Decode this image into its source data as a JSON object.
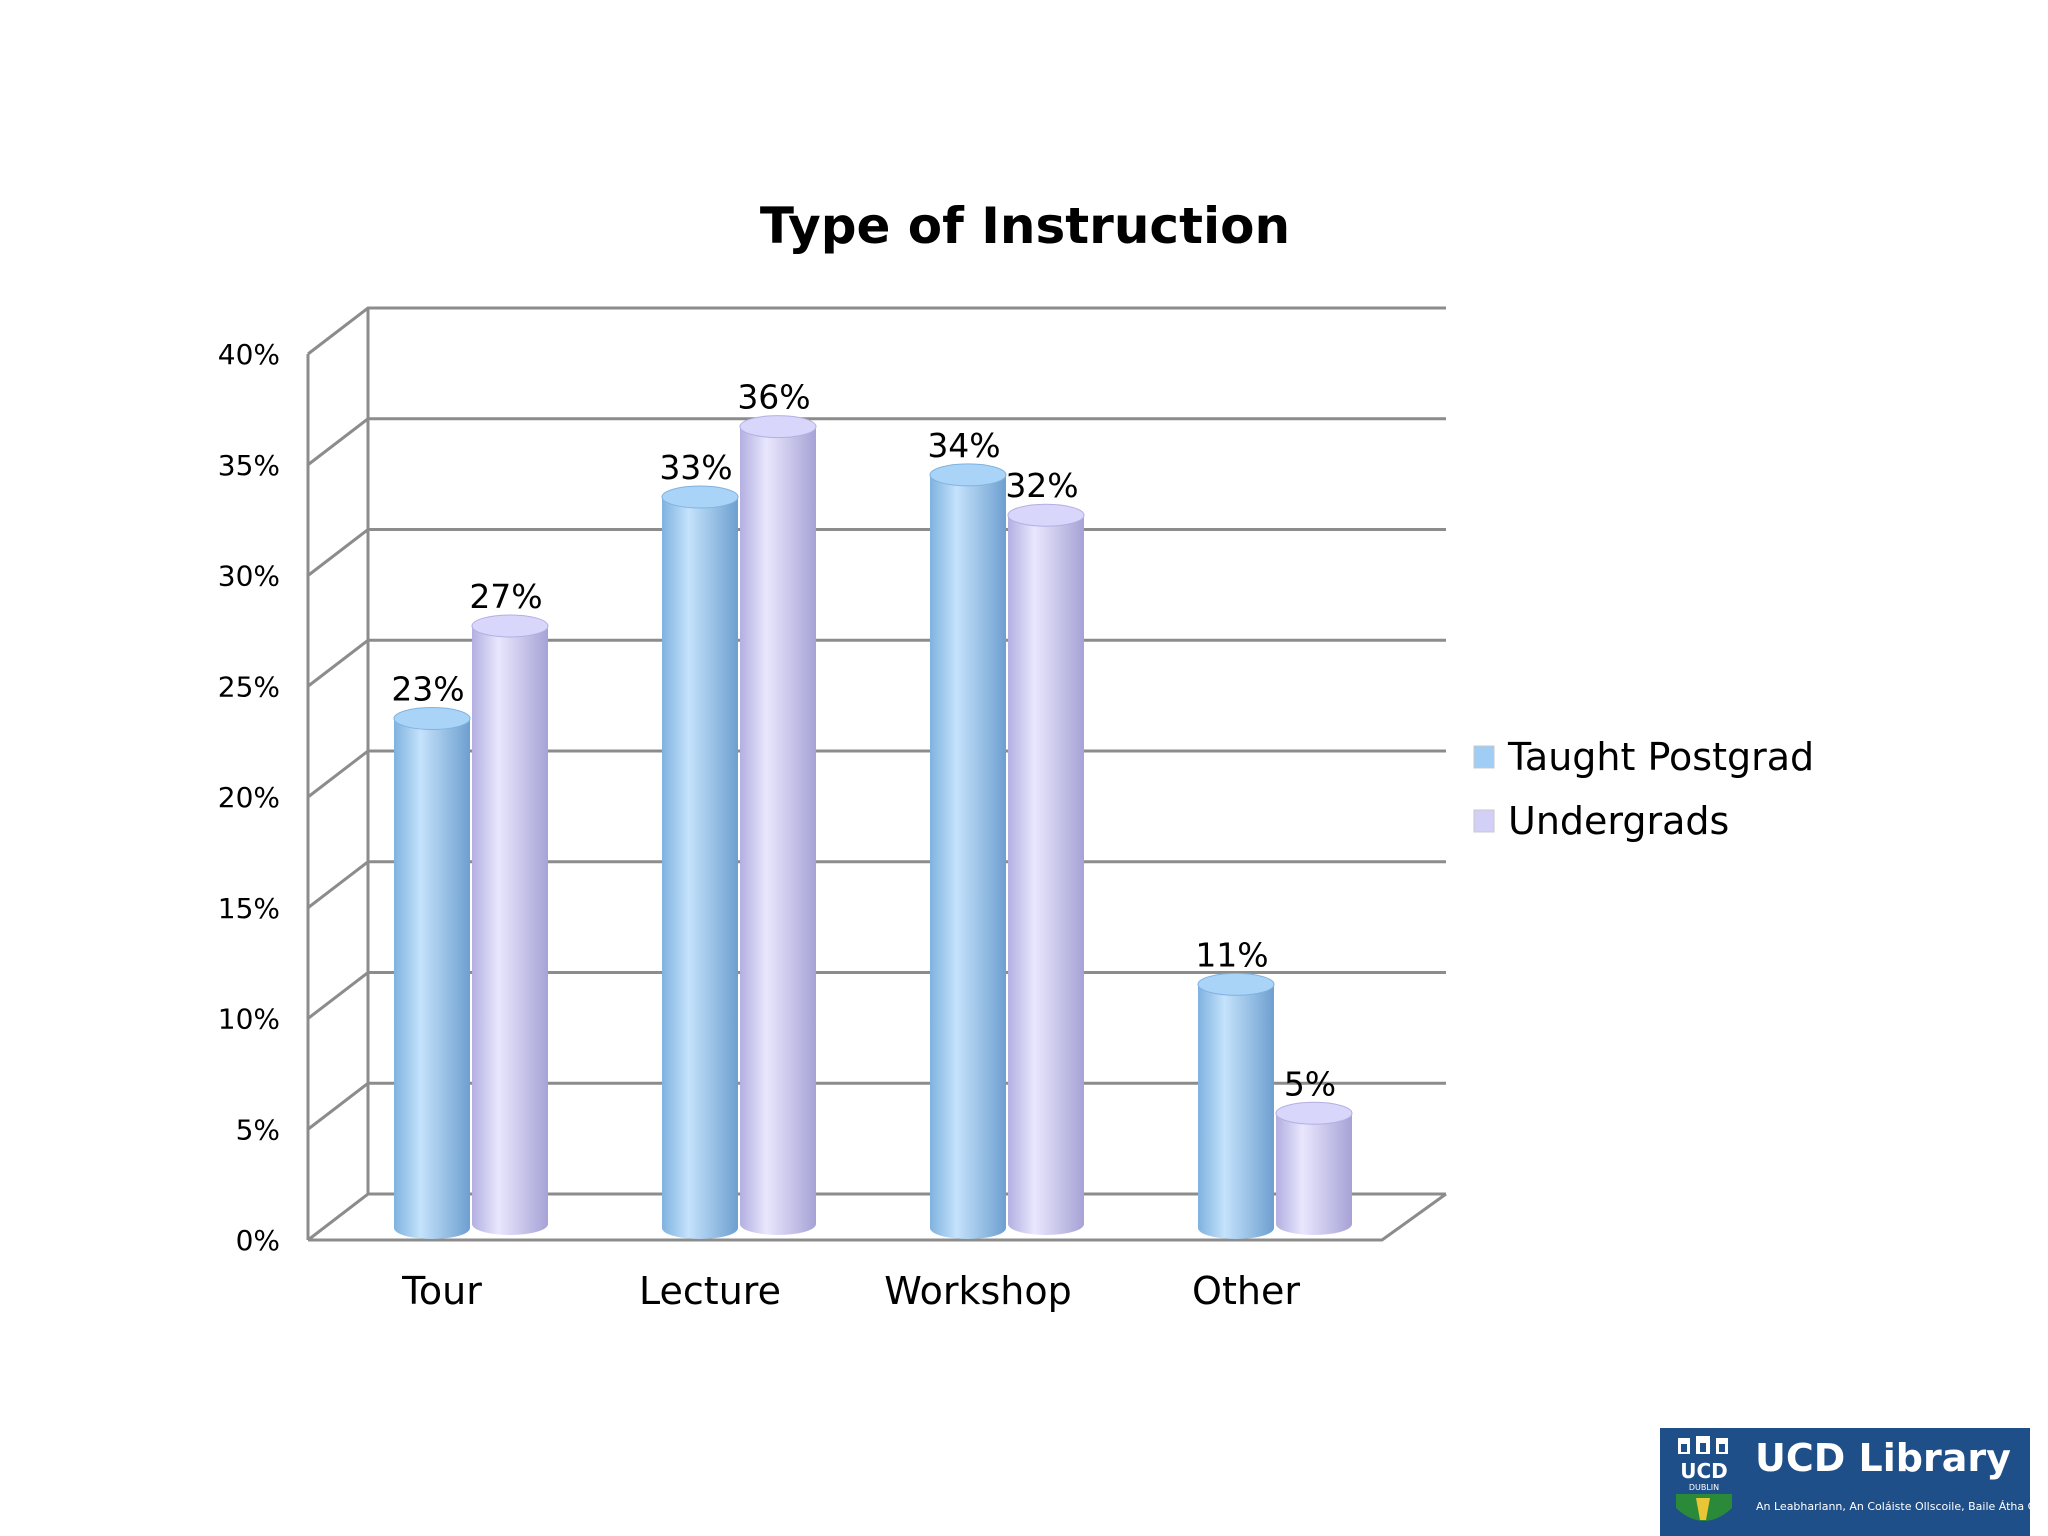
{
  "chart_data": {
    "type": "bar",
    "title": "Type of Instruction",
    "categories": [
      "Tour",
      "Lecture",
      "Workshop",
      "Other"
    ],
    "series": [
      {
        "name": "Taught Postgrad",
        "values": [
          23,
          33,
          34,
          11
        ],
        "labels": [
          "23%",
          "33%",
          "34%",
          "11%"
        ],
        "color": "#9fcdf5"
      },
      {
        "name": "Undergrads",
        "values": [
          27,
          36,
          32,
          5
        ],
        "labels": [
          "27%",
          "36%",
          "32%",
          "5%"
        ],
        "color": "#d3d0f7"
      }
    ],
    "yticks": [
      "0%",
      "5%",
      "10%",
      "15%",
      "20%",
      "25%",
      "30%",
      "35%",
      "40%"
    ],
    "ylim": [
      0,
      40
    ],
    "grid": true,
    "legend_position": "right",
    "style": "3d-cylinder"
  },
  "logo": {
    "title": "UCD Library",
    "subtitle": "An Leabharlann, An Coláiste Ollscoile, Baile Átha Cliath",
    "crest_text": "UCD DUBLIN"
  }
}
